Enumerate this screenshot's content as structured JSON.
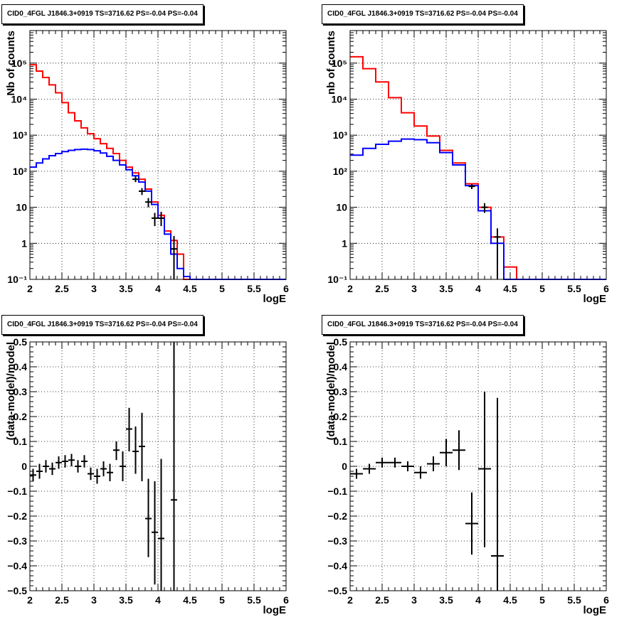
{
  "colors": {
    "model": "#ff0000",
    "source": "#0000ff",
    "data": "#000000"
  },
  "chart_data": [
    {
      "type": "histogram",
      "title": "CID0_4FGL J1846.3+0919 TS=3716.62 PS=-0.04 PS=-0.04",
      "xlabel": "logE",
      "ylabel": "Nb of counts",
      "xlim": [
        2,
        6
      ],
      "ylim": [
        0.1,
        800000
      ],
      "yscale": "log",
      "grid": true,
      "xticks": [
        "2",
        "2.5",
        "3",
        "3.5",
        "4",
        "4.5",
        "5",
        "5.5",
        "6"
      ],
      "yticks": [
        {
          "v": 0.1,
          "label": "10⁻¹"
        },
        {
          "v": 1,
          "label": "1"
        },
        {
          "v": 10,
          "label": "10"
        },
        {
          "v": 100,
          "label": "10²"
        },
        {
          "v": 1000,
          "label": "10³"
        },
        {
          "v": 10000,
          "label": "10⁴"
        },
        {
          "v": 100000,
          "label": "10⁵"
        }
      ],
      "bin_edges": [
        2.0,
        2.1,
        2.2,
        2.3,
        2.4,
        2.5,
        2.6,
        2.7,
        2.8,
        2.9,
        3.0,
        3.1,
        3.2,
        3.3,
        3.4,
        3.5,
        3.6,
        3.7,
        3.8,
        3.9,
        4.0,
        4.1,
        4.2,
        4.3,
        4.4,
        4.5,
        4.6,
        4.7,
        4.8,
        4.9,
        5.0,
        5.1,
        5.2,
        5.3,
        5.4,
        5.5,
        5.6,
        5.7,
        5.8,
        5.9,
        6.0
      ],
      "series": [
        {
          "role": "model",
          "values": [
            90000,
            60000,
            40000,
            25000,
            15000,
            8000,
            4200,
            2500,
            1600,
            1100,
            800,
            580,
            430,
            310,
            200,
            130,
            90,
            60,
            32,
            14,
            6,
            2.2,
            1.2,
            0.5,
            0.1,
            0.1,
            0.1,
            0.1,
            0.1,
            0.1,
            0.1,
            0.1,
            0.1,
            0.1,
            0.1,
            0.1,
            0.1,
            0.1,
            0.1,
            0.1
          ]
        },
        {
          "role": "source",
          "values": [
            130,
            170,
            220,
            270,
            310,
            350,
            380,
            400,
            410,
            400,
            370,
            320,
            260,
            200,
            150,
            110,
            75,
            50,
            28,
            12,
            5,
            1.8,
            0.5,
            0.2,
            0.12,
            0.1,
            0.1,
            0.1,
            0.1,
            0.1,
            0.1,
            0.1,
            0.1,
            0.1,
            0.1,
            0.1,
            0.1,
            0.1,
            0.1,
            0.1
          ]
        }
      ],
      "points": [
        {
          "x": 3.65,
          "y": 60,
          "lo": 50,
          "hi": 72
        },
        {
          "x": 3.75,
          "y": 28,
          "lo": 22,
          "hi": 34
        },
        {
          "x": 3.85,
          "y": 14,
          "lo": 10,
          "hi": 18
        },
        {
          "x": 3.95,
          "y": 5,
          "lo": 3,
          "hi": 7
        },
        {
          "x": 4.05,
          "y": 5,
          "lo": 3,
          "hi": 7.5
        },
        {
          "x": 4.25,
          "y": 0.7,
          "lo": 0.1,
          "hi": 1.6
        }
      ]
    },
    {
      "type": "histogram",
      "title": "CID0_4FGL J1846.3+0919 TS=3716.62 PS=-0.04 PS=-0.04",
      "xlabel": "logE",
      "ylabel": "nb of counts",
      "xlim": [
        2,
        6
      ],
      "ylim": [
        0.1,
        800000
      ],
      "yscale": "log",
      "grid": true,
      "xticks": [
        "2",
        "2.5",
        "3",
        "3.5",
        "4",
        "4.5",
        "5",
        "5.5",
        "6"
      ],
      "yticks": [
        {
          "v": 0.1,
          "label": "10⁻¹"
        },
        {
          "v": 1,
          "label": "1"
        },
        {
          "v": 10,
          "label": "10"
        },
        {
          "v": 100,
          "label": "10²"
        },
        {
          "v": 1000,
          "label": "10³"
        },
        {
          "v": 10000,
          "label": "10⁴"
        },
        {
          "v": 100000,
          "label": "10⁵"
        }
      ],
      "bin_edges": [
        2.0,
        2.2,
        2.4,
        2.6,
        2.8,
        3.0,
        3.2,
        3.4,
        3.6,
        3.8,
        4.0,
        4.2,
        4.4,
        4.6,
        4.8,
        5.0,
        5.2,
        5.4,
        5.6,
        5.8,
        6.0
      ],
      "series": [
        {
          "role": "model",
          "values": [
            150000,
            70000,
            30000,
            11000,
            4200,
            1800,
            950,
            380,
            170,
            45,
            10,
            1.5,
            0.22,
            0.1,
            0.1,
            0.1,
            0.1,
            0.1,
            0.1,
            0.1
          ]
        },
        {
          "role": "source",
          "values": [
            280,
            430,
            560,
            680,
            780,
            750,
            620,
            330,
            150,
            40,
            8,
            1.0,
            0.1,
            0.1,
            0.1,
            0.1,
            0.1,
            0.1,
            0.1,
            0.1
          ]
        }
      ],
      "points": [
        {
          "x": 3.9,
          "y": 38,
          "lo": 32,
          "hi": 44
        },
        {
          "x": 4.1,
          "y": 10,
          "lo": 7,
          "hi": 13
        },
        {
          "x": 4.3,
          "y": 1.5,
          "lo": 0.1,
          "hi": 2.6
        }
      ]
    },
    {
      "type": "scatter",
      "title": "CID0_4FGL J1846.3+0919 TS=3716.62 PS=-0.04 PS=-0.04",
      "xlabel": "logE",
      "ylabel": "(data-model)/model",
      "xlim": [
        2,
        6
      ],
      "ylim": [
        -0.5,
        0.5
      ],
      "grid": true,
      "xticks": [
        "2",
        "2.5",
        "3",
        "3.5",
        "4",
        "4.5",
        "5",
        "5.5",
        "6"
      ],
      "yticks": [
        {
          "v": -0.5,
          "label": "−0.5"
        },
        {
          "v": -0.4,
          "label": "−0.4"
        },
        {
          "v": -0.3,
          "label": "−0.3"
        },
        {
          "v": -0.2,
          "label": "−0.2"
        },
        {
          "v": -0.1,
          "label": "−0.1"
        },
        {
          "v": 0,
          "label": "0"
        },
        {
          "v": 0.1,
          "label": "0.1"
        },
        {
          "v": 0.2,
          "label": "0.2"
        },
        {
          "v": 0.3,
          "label": "0.3"
        },
        {
          "v": 0.4,
          "label": "0.4"
        },
        {
          "v": 0.5,
          "label": "0.5"
        }
      ],
      "x_halfwidth": 0.05,
      "points": [
        {
          "x": 2.05,
          "y": -0.035,
          "lo": -0.06,
          "hi": -0.01
        },
        {
          "x": 2.15,
          "y": -0.02,
          "lo": -0.05,
          "hi": 0.01
        },
        {
          "x": 2.25,
          "y": 0.0,
          "lo": -0.025,
          "hi": 0.025
        },
        {
          "x": 2.35,
          "y": -0.01,
          "lo": -0.035,
          "hi": 0.015
        },
        {
          "x": 2.45,
          "y": 0.015,
          "lo": -0.01,
          "hi": 0.04
        },
        {
          "x": 2.55,
          "y": 0.02,
          "lo": -0.005,
          "hi": 0.045
        },
        {
          "x": 2.65,
          "y": 0.025,
          "lo": 0.0,
          "hi": 0.05
        },
        {
          "x": 2.75,
          "y": 0.0,
          "lo": -0.025,
          "hi": 0.025
        },
        {
          "x": 2.85,
          "y": 0.02,
          "lo": -0.005,
          "hi": 0.045
        },
        {
          "x": 2.95,
          "y": -0.03,
          "lo": -0.055,
          "hi": -0.005
        },
        {
          "x": 3.05,
          "y": -0.04,
          "lo": -0.07,
          "hi": -0.01
        },
        {
          "x": 3.15,
          "y": -0.01,
          "lo": -0.04,
          "hi": 0.02
        },
        {
          "x": 3.25,
          "y": -0.025,
          "lo": -0.06,
          "hi": 0.01
        },
        {
          "x": 3.35,
          "y": 0.065,
          "lo": 0.025,
          "hi": 0.1
        },
        {
          "x": 3.45,
          "y": 0.0,
          "lo": -0.06,
          "hi": 0.06
        },
        {
          "x": 3.55,
          "y": 0.15,
          "lo": 0.06,
          "hi": 0.235
        },
        {
          "x": 3.65,
          "y": 0.06,
          "lo": -0.03,
          "hi": 0.16
        },
        {
          "x": 3.75,
          "y": 0.08,
          "lo": -0.06,
          "hi": 0.215
        },
        {
          "x": 3.85,
          "y": -0.21,
          "lo": -0.365,
          "hi": -0.05
        },
        {
          "x": 3.95,
          "y": -0.265,
          "lo": -0.475,
          "hi": -0.06
        },
        {
          "x": 4.05,
          "y": -0.29,
          "lo": -0.5,
          "hi": 0.03
        },
        {
          "x": 4.25,
          "y": -0.135,
          "lo": -0.5,
          "hi": 0.5
        }
      ]
    },
    {
      "type": "scatter",
      "title": "CID0_4FGL J1846.3+0919 TS=3716.62 PS=-0.04 PS=-0.04",
      "xlabel": "logE",
      "ylabel": "(data-model)/model",
      "xlim": [
        2,
        6
      ],
      "ylim": [
        -0.5,
        0.5
      ],
      "grid": true,
      "xticks": [
        "2",
        "2.5",
        "3",
        "3.5",
        "4",
        "4.5",
        "5",
        "5.5",
        "6"
      ],
      "yticks": [
        {
          "v": -0.5,
          "label": "−0.5"
        },
        {
          "v": -0.4,
          "label": "−0.4"
        },
        {
          "v": -0.3,
          "label": "−0.3"
        },
        {
          "v": -0.2,
          "label": "−0.2"
        },
        {
          "v": -0.1,
          "label": "−0.1"
        },
        {
          "v": 0,
          "label": "0"
        },
        {
          "v": 0.1,
          "label": "0.1"
        },
        {
          "v": 0.2,
          "label": "0.2"
        },
        {
          "v": 0.3,
          "label": "0.3"
        },
        {
          "v": 0.4,
          "label": "0.4"
        },
        {
          "v": 0.5,
          "label": "0.5"
        }
      ],
      "x_halfwidth": 0.1,
      "points": [
        {
          "x": 2.1,
          "y": -0.03,
          "lo": -0.05,
          "hi": -0.01
        },
        {
          "x": 2.3,
          "y": -0.01,
          "lo": -0.03,
          "hi": 0.01
        },
        {
          "x": 2.5,
          "y": 0.015,
          "lo": -0.005,
          "hi": 0.035
        },
        {
          "x": 2.7,
          "y": 0.015,
          "lo": -0.005,
          "hi": 0.035
        },
        {
          "x": 2.9,
          "y": 0.0,
          "lo": -0.02,
          "hi": 0.02
        },
        {
          "x": 3.1,
          "y": -0.025,
          "lo": -0.05,
          "hi": 0.0
        },
        {
          "x": 3.3,
          "y": 0.01,
          "lo": -0.02,
          "hi": 0.04
        },
        {
          "x": 3.5,
          "y": 0.055,
          "lo": 0.0,
          "hi": 0.11
        },
        {
          "x": 3.7,
          "y": 0.065,
          "lo": -0.015,
          "hi": 0.145
        },
        {
          "x": 3.9,
          "y": -0.23,
          "lo": -0.355,
          "hi": -0.105
        },
        {
          "x": 4.1,
          "y": -0.01,
          "lo": -0.325,
          "hi": 0.3
        },
        {
          "x": 4.3,
          "y": -0.36,
          "lo": -0.5,
          "hi": 0.275
        }
      ]
    }
  ]
}
